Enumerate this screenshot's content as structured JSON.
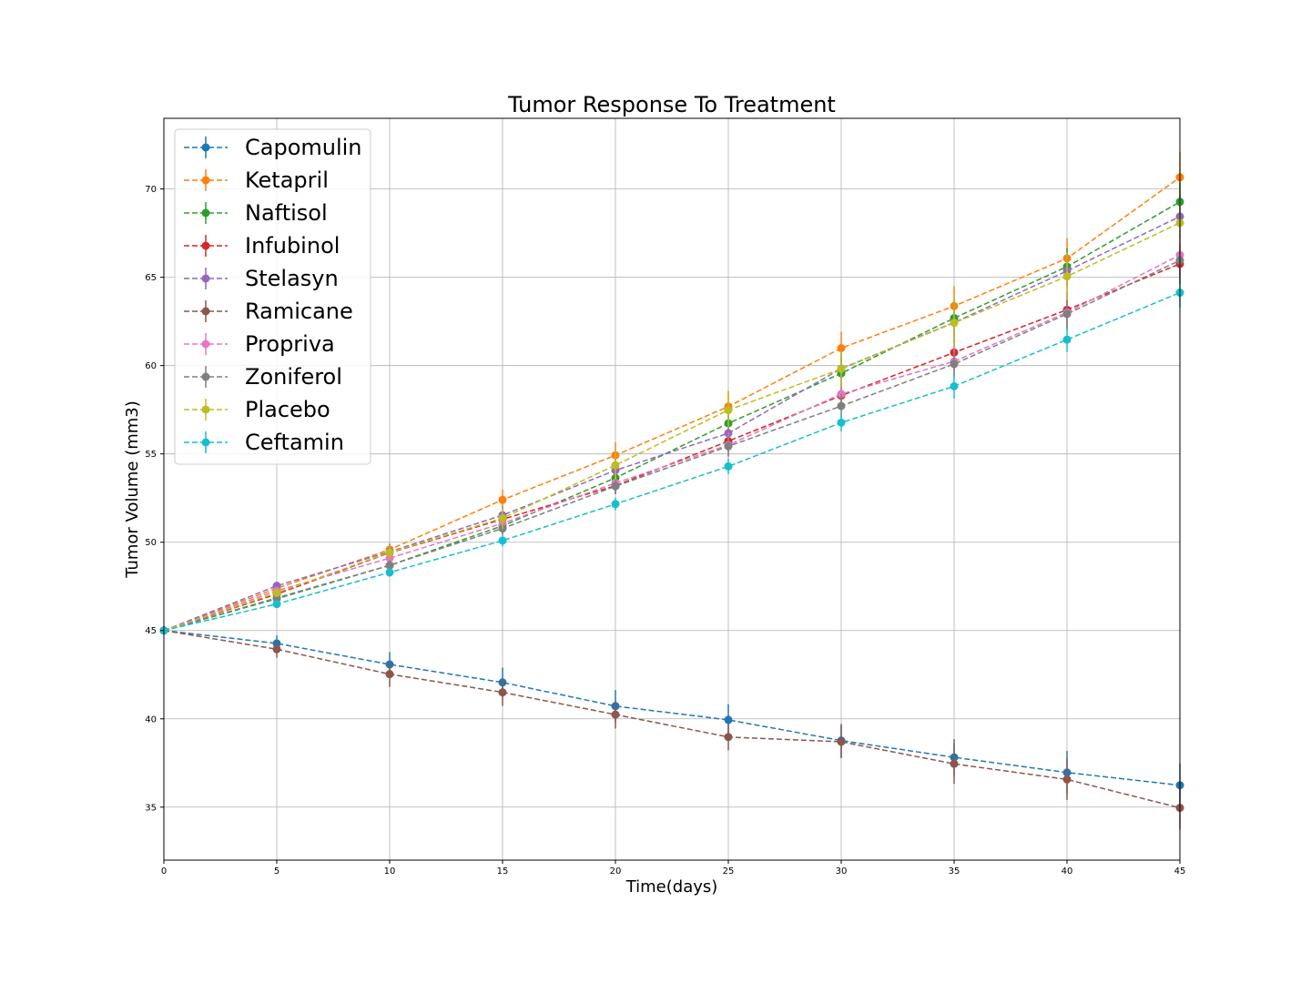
{
  "chart_data": {
    "type": "line",
    "title": "Tumor Response To Treatment",
    "xlabel": "Time(days)",
    "ylabel": "Tumor Volume (mm3)",
    "xlim": [
      0,
      45
    ],
    "ylim": [
      32,
      74
    ],
    "xticks": [
      0,
      5,
      10,
      15,
      20,
      25,
      30,
      35,
      40,
      45
    ],
    "yticks": [
      35,
      40,
      45,
      50,
      55,
      60,
      65,
      70
    ],
    "grid": true,
    "legend_position": "upper-left",
    "line_style": "dashed",
    "x": [
      0,
      5,
      10,
      15,
      20,
      25,
      30,
      35,
      40,
      45
    ],
    "series": [
      {
        "name": "Capomulin",
        "color": "#1f77b4",
        "values": [
          45.0,
          44.27,
          43.08,
          42.06,
          40.72,
          39.94,
          38.77,
          37.82,
          36.96,
          36.24
        ],
        "errors": [
          0,
          0.45,
          0.7,
          0.84,
          0.91,
          0.89,
          0.94,
          1.03,
          1.22,
          1.22
        ]
      },
      {
        "name": "Ketapril",
        "color": "#ff7f0e",
        "values": [
          45.0,
          47.39,
          49.58,
          52.4,
          54.92,
          57.68,
          60.99,
          63.37,
          66.07,
          70.66
        ],
        "errors": [
          0,
          0.26,
          0.36,
          0.58,
          0.73,
          0.88,
          0.93,
          1.13,
          1.16,
          1.45
        ]
      },
      {
        "name": "Naftisol",
        "color": "#2ca02c",
        "values": [
          45.0,
          46.8,
          48.69,
          50.93,
          53.64,
          56.73,
          59.56,
          62.69,
          65.6,
          69.27
        ],
        "errors": [
          0,
          0.2,
          0.32,
          0.44,
          0.6,
          0.81,
          0.98,
          1.02,
          1.05,
          1.09
        ]
      },
      {
        "name": "Infubinol",
        "color": "#d62728",
        "values": [
          45.0,
          47.06,
          49.4,
          51.3,
          53.2,
          55.72,
          58.3,
          60.74,
          63.16,
          65.76
        ],
        "errors": [
          0,
          0.24,
          0.28,
          0.36,
          0.48,
          0.55,
          0.63,
          0.98,
          1.06,
          1.14
        ]
      },
      {
        "name": "Stelasyn",
        "color": "#9467bd",
        "values": [
          45.0,
          47.53,
          49.46,
          51.53,
          54.07,
          56.17,
          59.83,
          62.44,
          65.36,
          68.44
        ],
        "errors": [
          0,
          0.24,
          0.43,
          0.49,
          0.62,
          0.74,
          0.9,
          0.93,
          1.0,
          1.29
        ]
      },
      {
        "name": "Ramicane",
        "color": "#8c564b",
        "values": [
          45.0,
          43.94,
          42.53,
          41.5,
          40.24,
          38.97,
          38.7,
          37.45,
          36.57,
          34.96
        ],
        "errors": [
          0,
          0.48,
          0.72,
          0.77,
          0.79,
          0.75,
          0.93,
          1.13,
          1.16,
          1.23
        ]
      },
      {
        "name": "Propriva",
        "color": "#e377c2",
        "values": [
          45.0,
          47.25,
          49.1,
          51.07,
          53.35,
          55.5,
          58.39,
          60.24,
          63.01,
          66.26
        ],
        "errors": [
          0,
          0.23,
          0.38,
          0.47,
          0.56,
          0.71,
          0.8,
          0.93,
          1.04,
          1.18
        ]
      },
      {
        "name": "Zoniferol",
        "color": "#7f7f7f",
        "values": [
          45.0,
          46.85,
          48.69,
          50.78,
          53.17,
          55.43,
          57.71,
          60.09,
          62.92,
          65.96
        ],
        "errors": [
          0,
          0.19,
          0.26,
          0.36,
          0.44,
          0.56,
          0.67,
          0.7,
          0.86,
          0.98
        ]
      },
      {
        "name": "Placebo",
        "color": "#bcbd22",
        "values": [
          45.0,
          47.13,
          49.42,
          51.36,
          54.36,
          57.48,
          59.81,
          62.42,
          65.05,
          68.08
        ],
        "errors": [
          0,
          0.22,
          0.4,
          0.61,
          0.84,
          1.03,
          1.02,
          1.35,
          1.35,
          1.35
        ]
      },
      {
        "name": "Ceftamin",
        "color": "#17becf",
        "values": [
          45.0,
          46.5,
          48.29,
          50.09,
          52.16,
          54.29,
          56.77,
          58.83,
          61.47,
          64.13
        ],
        "errors": [
          0,
          0.16,
          0.24,
          0.33,
          0.36,
          0.44,
          0.49,
          0.69,
          0.71,
          0.84
        ]
      }
    ]
  }
}
